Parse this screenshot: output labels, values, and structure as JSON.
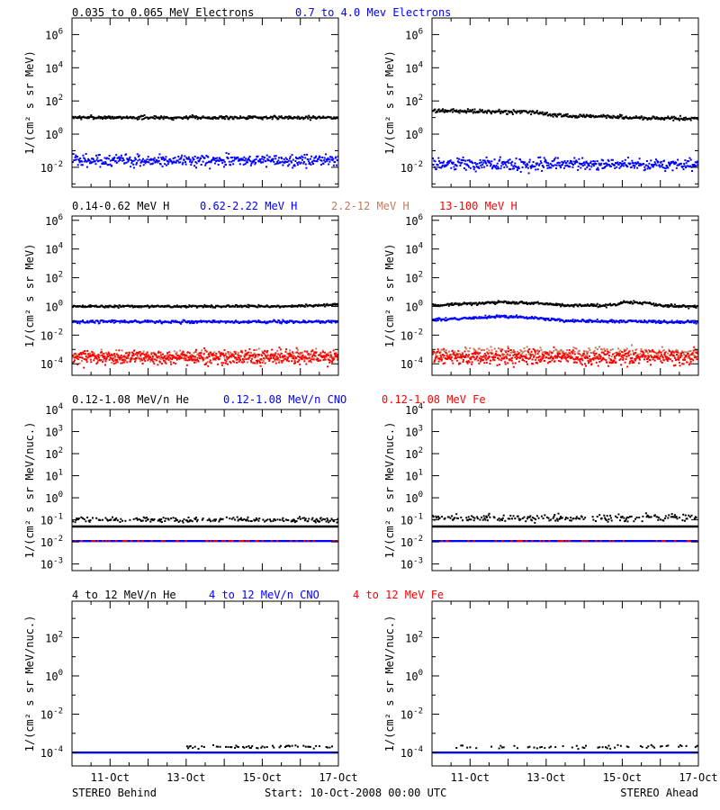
{
  "footer": {
    "left": "STEREO Behind",
    "center": "Start: 10-Oct-2008 00:00 UTC",
    "right": "STEREO Ahead"
  },
  "chart_data": [
    {
      "type": "scatter",
      "row": 0,
      "col": 0,
      "yscale": "log",
      "yticks": [
        -2,
        0,
        2,
        4,
        6
      ],
      "ylim_exp": [
        -3.2,
        7.0
      ],
      "ylabel": "1/(cm² s sr MeV)",
      "xlim": [
        "10-Oct-2008 00:00",
        "17-Oct-2008 00:00"
      ],
      "xticks": [
        "11-Oct",
        "13-Oct",
        "15-Oct",
        "17-Oct"
      ],
      "show_xtick_labels": false,
      "legend_header": [
        {
          "text": "0.035 to 0.065 MeV Electrons",
          "color": "#000000"
        },
        {
          "text": "0.7 to 4.0 Mev Electrons",
          "color": "#0000ff"
        }
      ],
      "series": [
        {
          "name": "0.035 to 0.065 MeV Electrons",
          "color": "#000000",
          "level": 10,
          "scatter_dex": 0.05,
          "min_day": 0,
          "frac": 1,
          "step": 0.02
        },
        {
          "name": "0.7 to 4.0 Mev Electrons",
          "color": "#0000ff",
          "level": 0.025,
          "scatter_dex": 0.18,
          "min_day": 0,
          "frac": 1,
          "step": 0.015
        }
      ]
    },
    {
      "type": "scatter",
      "row": 0,
      "col": 1,
      "yscale": "log",
      "yticks": [
        -2,
        0,
        2,
        4,
        6
      ],
      "ylim_exp": [
        -3.2,
        7.0
      ],
      "ylabel": "1/(cm² s sr MeV)",
      "xlim": [
        "10-Oct-2008 00:00",
        "17-Oct-2008 00:00"
      ],
      "xticks": [
        "11-Oct",
        "13-Oct",
        "15-Oct",
        "17-Oct"
      ],
      "show_xtick_labels": false,
      "legend_header": [],
      "series": [
        {
          "name": "0.035 to 0.065 MeV Electrons",
          "color": "#000000",
          "curve": [
            [
              0,
              25
            ],
            [
              2.6,
              22
            ],
            [
              3.2,
              14
            ],
            [
              4.5,
              11
            ],
            [
              7,
              8
            ]
          ],
          "scatter_dex": 0.06,
          "min_day": 0,
          "frac": 1,
          "step": 0.02
        },
        {
          "name": "0.7 to 4.0 Mev Electrons",
          "color": "#0000ff",
          "level": 0.015,
          "scatter_dex": 0.18,
          "min_day": 0,
          "frac": 1,
          "step": 0.015
        }
      ]
    },
    {
      "type": "scatter",
      "row": 1,
      "col": 0,
      "yscale": "log",
      "yticks": [
        -4,
        -2,
        0,
        2,
        4,
        6
      ],
      "ylim_exp": [
        -4.8,
        6.3
      ],
      "ylabel": "1/(cm² s sr MeV)",
      "xlim": [
        "10-Oct-2008 00:00",
        "17-Oct-2008 00:00"
      ],
      "xticks": [
        "11-Oct",
        "13-Oct",
        "15-Oct",
        "17-Oct"
      ],
      "show_xtick_labels": false,
      "legend_header": [
        {
          "text": "0.14-0.62 MeV H",
          "color": "#000000"
        },
        {
          "text": "0.62-2.22 MeV H",
          "color": "#0000ff"
        },
        {
          "text": "2.2-12 MeV H",
          "color": "#c8785a"
        },
        {
          "text": "13-100 MeV H",
          "color": "#ff0000"
        }
      ],
      "series": [
        {
          "name": "0.14-0.62 MeV H",
          "color": "#000000",
          "curve": [
            [
              0,
              1.0
            ],
            [
              5.5,
              1.0
            ],
            [
              7,
              1.3
            ]
          ],
          "scatter_dex": 0.04,
          "min_day": 0,
          "frac": 1,
          "step": 0.02
        },
        {
          "name": "0.62-2.22 MeV H",
          "color": "#0000ff",
          "level": 0.085,
          "scatter_dex": 0.05,
          "min_day": 0,
          "frac": 1,
          "step": 0.02
        },
        {
          "name": "2.2-12 MeV H",
          "color": "#c8785a",
          "level": 0.00035,
          "scatter_dex": 0.2,
          "min_day": 0,
          "frac": 1,
          "step": 0.03
        },
        {
          "name": "13-100 MeV H",
          "color": "#ff0000",
          "level": 0.00028,
          "scatter_dex": 0.25,
          "min_day": 0,
          "frac": 1,
          "step": 0.012
        }
      ]
    },
    {
      "type": "scatter",
      "row": 1,
      "col": 1,
      "yscale": "log",
      "yticks": [
        -4,
        -2,
        0,
        2,
        4,
        6
      ],
      "ylim_exp": [
        -4.8,
        6.3
      ],
      "ylabel": "1/(cm² s sr MeV)",
      "xlim": [
        "10-Oct-2008 00:00",
        "17-Oct-2008 00:00"
      ],
      "xticks": [
        "11-Oct",
        "13-Oct",
        "15-Oct",
        "17-Oct"
      ],
      "show_xtick_labels": false,
      "legend_header": [],
      "series": [
        {
          "name": "0.14-0.62 MeV H",
          "color": "#000000",
          "curve": [
            [
              0,
              1.2
            ],
            [
              1.2,
              1.6
            ],
            [
              1.6,
              2.0
            ],
            [
              2.8,
              1.6
            ],
            [
              3.5,
              1.2
            ],
            [
              4.8,
              1.2
            ],
            [
              5.0,
              2.0
            ],
            [
              5.6,
              1.7
            ],
            [
              6,
              1.1
            ],
            [
              7,
              1.0
            ]
          ],
          "scatter_dex": 0.05,
          "min_day": 0,
          "frac": 1,
          "step": 0.02
        },
        {
          "name": "0.62-2.22 MeV H",
          "color": "#0000ff",
          "curve": [
            [
              0,
              0.12
            ],
            [
              1.3,
              0.16
            ],
            [
              1.8,
              0.2
            ],
            [
              2.8,
              0.15
            ],
            [
              3.5,
              0.1
            ],
            [
              7,
              0.08
            ]
          ],
          "scatter_dex": 0.05,
          "min_day": 0,
          "frac": 1,
          "step": 0.02
        },
        {
          "name": "2.2-12 MeV H",
          "color": "#c8785a",
          "level": 0.0006,
          "scatter_dex": 0.2,
          "min_day": 0,
          "frac": 1,
          "step": 0.025
        },
        {
          "name": "13-100 MeV H",
          "color": "#ff0000",
          "level": 0.00028,
          "scatter_dex": 0.25,
          "min_day": 0,
          "frac": 1,
          "step": 0.012
        }
      ]
    },
    {
      "type": "scatter",
      "row": 2,
      "col": 0,
      "yscale": "log",
      "yticks": [
        -3,
        -2,
        -1,
        0,
        1,
        2,
        3,
        4
      ],
      "ylim_exp": [
        -3.3,
        4.0
      ],
      "ylabel": "1/(cm² s sr MeV/nuc.)",
      "xlim": [
        "10-Oct-2008 00:00",
        "17-Oct-2008 00:00"
      ],
      "xticks": [
        "11-Oct",
        "13-Oct",
        "15-Oct",
        "17-Oct"
      ],
      "show_xtick_labels": false,
      "legend_header": [
        {
          "text": "0.12-1.08 MeV/n He",
          "color": "#000000"
        },
        {
          "text": "0.12-1.08 MeV/n CNO",
          "color": "#0000ff"
        },
        {
          "text": "0.12-1.08 MeV Fe",
          "color": "#ff0000"
        }
      ],
      "series": [
        {
          "name": "0.12-1.08 MeV/n He",
          "color": "#000000",
          "level": 0.1,
          "scatter_dex": 0.06,
          "min_day": 0,
          "frac": 0.55,
          "step": 0.02
        },
        {
          "name": "0.12-1.08 MeV/n CNO",
          "color": "#0000ff",
          "level": 0.011,
          "scatter_dex": 0.0,
          "min_day": 0,
          "frac": 1,
          "step": 0.01
        },
        {
          "name": "0.12-1.08 MeV Fe",
          "color": "#ff0000",
          "level": 0.011,
          "scatter_dex": 0.0,
          "min_day": 0,
          "frac": 0.2,
          "step": 0.03
        }
      ],
      "reference_lines": [
        {
          "color": "#000000",
          "value": 0.05,
          "width": 2.5
        }
      ]
    },
    {
      "type": "scatter",
      "row": 2,
      "col": 1,
      "yscale": "log",
      "yticks": [
        -3,
        -2,
        -1,
        0,
        1,
        2,
        3,
        4
      ],
      "ylim_exp": [
        -3.3,
        4.0
      ],
      "ylabel": "1/(cm² s sr MeV/nuc.)",
      "xlim": [
        "10-Oct-2008 00:00",
        "17-Oct-2008 00:00"
      ],
      "xticks": [
        "11-Oct",
        "13-Oct",
        "15-Oct",
        "17-Oct"
      ],
      "show_xtick_labels": false,
      "legend_header": [],
      "series": [
        {
          "name": "0.12-1.08 MeV/n He",
          "color": "#000000",
          "level": 0.12,
          "scatter_dex": 0.08,
          "min_day": 0,
          "frac": 0.6,
          "step": 0.02
        },
        {
          "name": "0.12-1.08 MeV/n CNO",
          "color": "#0000ff",
          "level": 0.011,
          "scatter_dex": 0.0,
          "min_day": 0,
          "frac": 1,
          "step": 0.01
        },
        {
          "name": "0.12-1.08 MeV Fe",
          "color": "#ff0000",
          "level": 0.011,
          "scatter_dex": 0.0,
          "min_day": 0,
          "frac": 0.2,
          "step": 0.03
        }
      ],
      "reference_lines": [
        {
          "color": "#000000",
          "value": 0.05,
          "width": 2.5
        }
      ]
    },
    {
      "type": "scatter",
      "row": 3,
      "col": 0,
      "yscale": "log",
      "yticks": [
        -4,
        -2,
        0,
        2
      ],
      "ylim_exp": [
        -4.7,
        3.9
      ],
      "ylabel": "1/(cm² s sr MeV/nuc.)",
      "xlim": [
        "10-Oct-2008 00:00",
        "17-Oct-2008 00:00"
      ],
      "xticks": [
        "11-Oct",
        "13-Oct",
        "15-Oct",
        "17-Oct"
      ],
      "show_xtick_labels": true,
      "legend_header": [
        {
          "text": "4 to 12 MeV/n He",
          "color": "#000000"
        },
        {
          "text": "4 to 12 MeV/n CNO",
          "color": "#0000ff"
        },
        {
          "text": "4 to 12 MeV Fe",
          "color": "#ff0000"
        }
      ],
      "series": [
        {
          "name": "4 to 12 MeV/n He",
          "color": "#000000",
          "level": 0.0002,
          "scatter_dex": 0.05,
          "min_day": 3.0,
          "frac": 0.5,
          "step": 0.03
        },
        {
          "name": "4 to 12 MeV/n CNO",
          "color": "#0000ff",
          "level": 0.0001,
          "scatter_dex": 0.0,
          "min_day": 0,
          "frac": 1,
          "step": 0.008
        }
      ]
    },
    {
      "type": "scatter",
      "row": 3,
      "col": 1,
      "yscale": "log",
      "yticks": [
        -4,
        -2,
        0,
        2
      ],
      "ylim_exp": [
        -4.7,
        3.9
      ],
      "ylabel": "1/(cm² s sr MeV/nuc.)",
      "xlim": [
        "10-Oct-2008 00:00",
        "17-Oct-2008 00:00"
      ],
      "xticks": [
        "11-Oct",
        "13-Oct",
        "15-Oct",
        "17-Oct"
      ],
      "show_xtick_labels": true,
      "legend_header": [],
      "series": [
        {
          "name": "4 to 12 MeV/n He",
          "color": "#000000",
          "level": 0.0002,
          "scatter_dex": 0.05,
          "min_day": 0.5,
          "frac": 0.35,
          "step": 0.04
        },
        {
          "name": "4 to 12 MeV/n CNO",
          "color": "#0000ff",
          "level": 0.0001,
          "scatter_dex": 0.0,
          "min_day": 0,
          "frac": 1,
          "step": 0.008
        }
      ]
    }
  ]
}
